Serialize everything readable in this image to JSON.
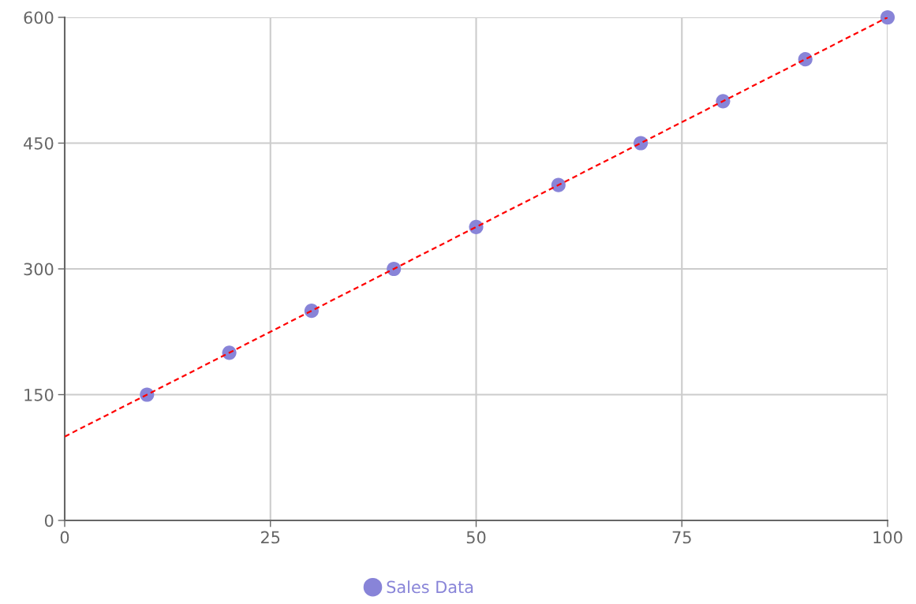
{
  "chart_data": {
    "type": "scatter",
    "x": [
      10,
      20,
      30,
      40,
      50,
      60,
      70,
      80,
      90,
      100
    ],
    "series": [
      {
        "name": "Sales Data",
        "color": "#8884d8",
        "values": [
          150,
          200,
          250,
          300,
          350,
          400,
          450,
          500,
          550,
          600
        ]
      },
      {
        "type": "line",
        "color": "#ff0000",
        "x": [
          0,
          100
        ],
        "values": [
          100,
          600
        ],
        "line_style": "dashed",
        "marker": "none"
      }
    ],
    "xlim": [
      0,
      100
    ],
    "xticks": [
      0,
      25,
      50,
      75,
      100
    ],
    "ylim": [
      0,
      600
    ],
    "yticks": [
      0,
      150,
      300,
      450,
      600
    ],
    "grid": true,
    "legend": "bottom",
    "marker": "circle"
  }
}
